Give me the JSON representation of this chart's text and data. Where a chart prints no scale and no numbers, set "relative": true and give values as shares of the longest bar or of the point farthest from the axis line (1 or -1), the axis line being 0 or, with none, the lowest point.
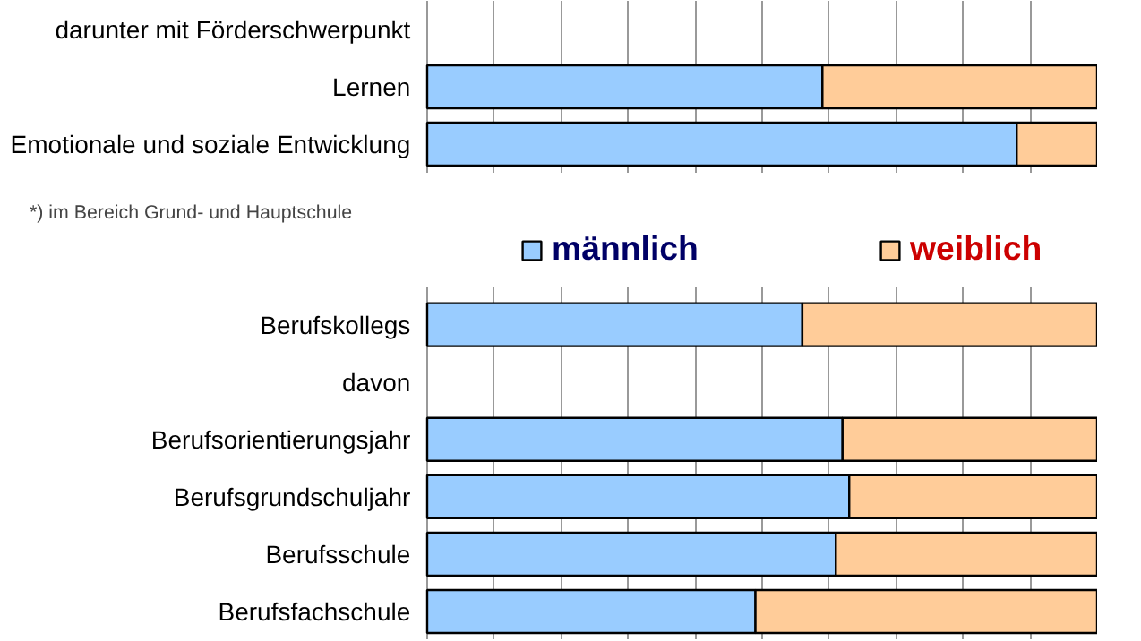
{
  "chart_data": [
    {
      "type": "bar",
      "orientation": "horizontal",
      "stacked": true,
      "relative": true,
      "grid": "x",
      "legend": "bottom",
      "categories": [
        "darunter mit Förderschwerpunkt",
        "Lernen",
        "Emotionale und soziale Entwicklung"
      ],
      "series": [
        {
          "name": "männlich",
          "color": "#99ccff",
          "values": [
            null,
            0.59,
            0.88
          ]
        },
        {
          "name": "weiblich",
          "color": "#ffcc99",
          "values": [
            null,
            0.41,
            0.12
          ]
        }
      ],
      "annotations": [
        "*) im Bereich Grund- und Hauptschule"
      ]
    },
    {
      "type": "bar",
      "orientation": "horizontal",
      "stacked": true,
      "relative": true,
      "grid": "x",
      "categories": [
        "Berufskollegs",
        "davon",
        "Berufsorientierungsjahr",
        "Berufsgrundschuljahr",
        "Berufsschule",
        "Berufsfachschule"
      ],
      "series": [
        {
          "color": "#99ccff",
          "values": [
            0.56,
            null,
            0.62,
            0.63,
            0.61,
            0.49
          ]
        },
        {
          "color": "#ffcc99",
          "values": [
            0.44,
            null,
            0.38,
            0.37,
            0.39,
            0.51
          ]
        }
      ]
    }
  ]
}
